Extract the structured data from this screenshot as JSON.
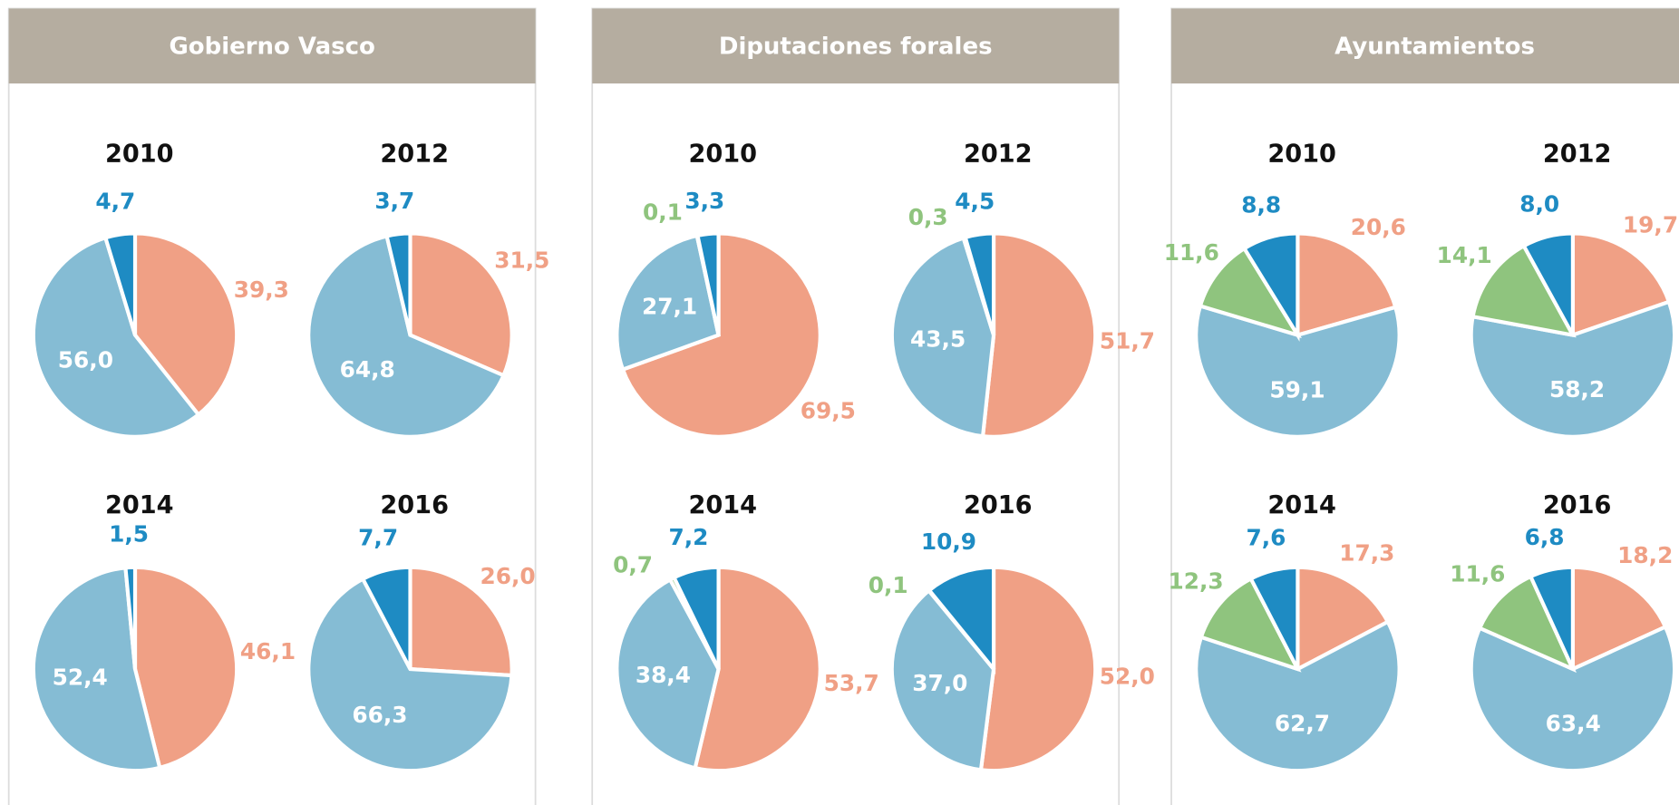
{
  "panels": [
    {
      "title": "Gobierno Vasco",
      "chart_data": [
        {
          "type": "pie",
          "title": "2010",
          "values": [
            39.3,
            56.0,
            4.7
          ],
          "value_labels": [
            "39,3",
            "56,0",
            "4,7"
          ],
          "colors": [
            "#f0a085",
            "#85bcd4",
            "#1e8bc3"
          ]
        },
        {
          "type": "pie",
          "title": "2012",
          "values": [
            31.5,
            64.8,
            3.7
          ],
          "value_labels": [
            "31,5",
            "64,8",
            "3,7"
          ],
          "colors": [
            "#f0a085",
            "#85bcd4",
            "#1e8bc3"
          ]
        },
        {
          "type": "pie",
          "title": "2014",
          "values": [
            46.1,
            52.4,
            1.5
          ],
          "value_labels": [
            "46,1",
            "52,4",
            "1,5"
          ],
          "colors": [
            "#f0a085",
            "#85bcd4",
            "#1e8bc3"
          ]
        },
        {
          "type": "pie",
          "title": "2016",
          "values": [
            26.0,
            66.3,
            7.7
          ],
          "value_labels": [
            "26,0",
            "66,3",
            "7,7"
          ],
          "colors": [
            "#f0a085",
            "#85bcd4",
            "#1e8bc3"
          ]
        }
      ]
    },
    {
      "title": "Diputaciones forales",
      "chart_data": [
        {
          "type": "pie",
          "title": "2010",
          "values": [
            69.5,
            27.1,
            0.1,
            3.3
          ],
          "value_labels": [
            "69,5",
            "27,1",
            "0,1",
            "3,3"
          ],
          "colors": [
            "#f0a085",
            "#85bcd4",
            "#8fc47e",
            "#1e8bc3"
          ]
        },
        {
          "type": "pie",
          "title": "2012",
          "values": [
            51.7,
            43.5,
            0.3,
            4.5
          ],
          "value_labels": [
            "51,7",
            "43,5",
            "0,3",
            "4,5"
          ],
          "colors": [
            "#f0a085",
            "#85bcd4",
            "#8fc47e",
            "#1e8bc3"
          ]
        },
        {
          "type": "pie",
          "title": "2014",
          "values": [
            53.7,
            38.4,
            0.7,
            7.2
          ],
          "value_labels": [
            "53,7",
            "38,4",
            "0,7",
            "7,2"
          ],
          "colors": [
            "#f0a085",
            "#85bcd4",
            "#8fc47e",
            "#1e8bc3"
          ]
        },
        {
          "type": "pie",
          "title": "2016",
          "values": [
            52.0,
            37.0,
            0.1,
            10.9
          ],
          "value_labels": [
            "52,0",
            "37,0",
            "0,1",
            "10,9"
          ],
          "colors": [
            "#f0a085",
            "#85bcd4",
            "#8fc47e",
            "#1e8bc3"
          ]
        }
      ]
    },
    {
      "title": "Ayuntamientos",
      "chart_data": [
        {
          "type": "pie",
          "title": "2010",
          "values": [
            20.6,
            59.1,
            11.6,
            8.8
          ],
          "value_labels": [
            "20,6",
            "59,1",
            "11,6",
            "8,8"
          ],
          "colors": [
            "#f0a085",
            "#85bcd4",
            "#8fc47e",
            "#1e8bc3"
          ]
        },
        {
          "type": "pie",
          "title": "2012",
          "values": [
            19.7,
            58.2,
            14.1,
            8.0
          ],
          "value_labels": [
            "19,7",
            "58,2",
            "14,1",
            "8,0"
          ],
          "colors": [
            "#f0a085",
            "#85bcd4",
            "#8fc47e",
            "#1e8bc3"
          ]
        },
        {
          "type": "pie",
          "title": "2014",
          "values": [
            17.3,
            62.7,
            12.3,
            7.6
          ],
          "value_labels": [
            "17,3",
            "62,7",
            "12,3",
            "7,6"
          ],
          "colors": [
            "#f0a085",
            "#85bcd4",
            "#8fc47e",
            "#1e8bc3"
          ]
        },
        {
          "type": "pie",
          "title": "2016",
          "values": [
            18.2,
            63.4,
            11.6,
            6.8
          ],
          "value_labels": [
            "18,2",
            "63,4",
            "11,6",
            "6,8"
          ],
          "colors": [
            "#f0a085",
            "#85bcd4",
            "#8fc47e",
            "#1e8bc3"
          ]
        }
      ]
    }
  ]
}
